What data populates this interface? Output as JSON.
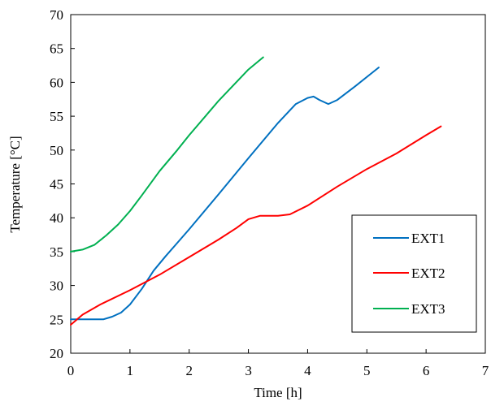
{
  "chart_data": {
    "type": "line",
    "xlabel": "Time [h]",
    "ylabel": "Temperature [°C]",
    "xlim": [
      0,
      7
    ],
    "ylim": [
      20,
      70
    ],
    "xticks": [
      "0",
      "1",
      "2",
      "3",
      "4",
      "5",
      "6",
      "7"
    ],
    "yticks": [
      "20",
      "25",
      "30",
      "35",
      "40",
      "45",
      "50",
      "55",
      "60",
      "65",
      "70"
    ],
    "grid": false,
    "legend_position": "bottom-right",
    "series": [
      {
        "name": "EXT1",
        "color": "#0070C0",
        "x": [
          0.0,
          0.3,
          0.55,
          0.7,
          0.85,
          1.0,
          1.2,
          1.4,
          1.6,
          1.8,
          2.0,
          2.5,
          3.0,
          3.5,
          3.8,
          4.0,
          4.1,
          4.2,
          4.35,
          4.5,
          4.8,
          5.2
        ],
        "y": [
          25.0,
          25.0,
          25.0,
          25.4,
          26.0,
          27.2,
          29.5,
          32.2,
          34.3,
          36.3,
          38.3,
          43.5,
          48.8,
          54.0,
          56.8,
          57.7,
          57.9,
          57.4,
          56.8,
          57.4,
          59.4,
          62.2
        ]
      },
      {
        "name": "EXT2",
        "color": "#FF0000",
        "x": [
          0.0,
          0.2,
          0.5,
          1.0,
          1.5,
          2.0,
          2.5,
          2.8,
          3.0,
          3.2,
          3.5,
          3.7,
          4.0,
          4.5,
          5.0,
          5.5,
          6.0,
          6.25
        ],
        "y": [
          24.2,
          25.7,
          27.2,
          29.3,
          31.6,
          34.2,
          36.8,
          38.5,
          39.8,
          40.3,
          40.3,
          40.5,
          41.8,
          44.6,
          47.2,
          49.5,
          52.2,
          53.5
        ]
      },
      {
        "name": "EXT3",
        "color": "#00B050",
        "x": [
          0.0,
          0.2,
          0.4,
          0.6,
          0.8,
          1.0,
          1.2,
          1.5,
          1.8,
          2.0,
          2.5,
          3.0,
          3.25
        ],
        "y": [
          35.0,
          35.3,
          36.0,
          37.4,
          39.0,
          41.0,
          43.3,
          46.9,
          50.0,
          52.2,
          57.3,
          61.9,
          63.7
        ]
      }
    ]
  }
}
